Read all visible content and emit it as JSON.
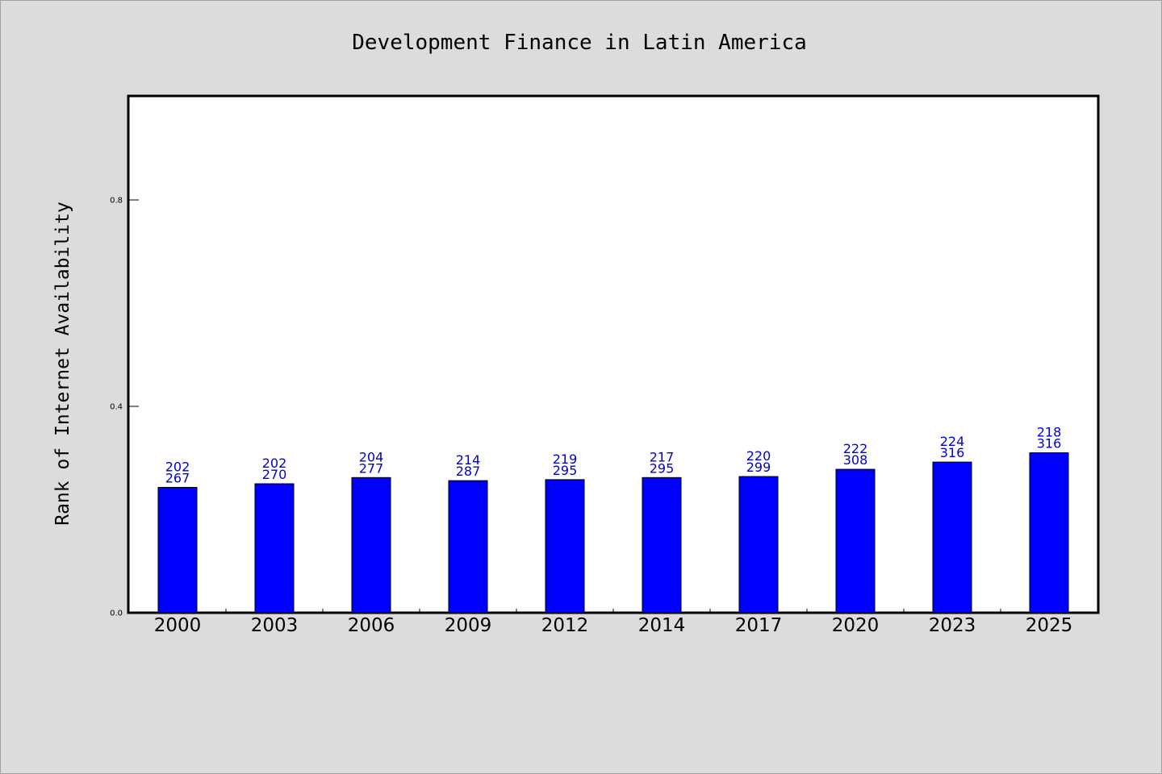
{
  "chart_data": {
    "type": "bar",
    "title": "Development Finance in Latin America",
    "xlabel": "",
    "ylabel": "Rank of Internet Availability",
    "categories": [
      "2000",
      "2003",
      "2006",
      "2009",
      "2012",
      "2014",
      "2017",
      "2020",
      "2023",
      "2025"
    ],
    "values": [
      0.243,
      0.25,
      0.262,
      0.256,
      0.258,
      0.262,
      0.264,
      0.278,
      0.292,
      0.31
    ],
    "label_top": [
      "202",
      "202",
      "204",
      "214",
      "219",
      "217",
      "220",
      "222",
      "224",
      "218"
    ],
    "label_bottom": [
      "267",
      "270",
      "277",
      "287",
      "295",
      "295",
      "299",
      "308",
      "316",
      "316"
    ],
    "yticks": [
      "0.0",
      "0.4",
      "0.8"
    ],
    "ylim": [
      0,
      1.0
    ],
    "grid": false,
    "bar_color": "#0000ff",
    "label_color": "#0000cc",
    "plot_background": "#ffffff",
    "page_background": "#dcdcdc"
  }
}
